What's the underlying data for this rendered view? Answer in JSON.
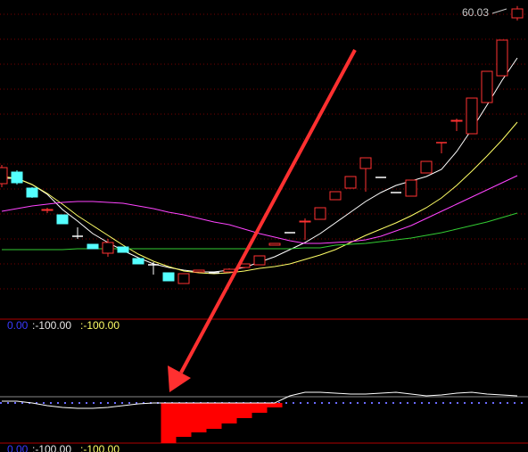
{
  "chart_data": [
    {
      "type": "candlestick",
      "annotation": "60.03",
      "ylim": [
        25,
        60.7
      ],
      "up_color": "#ff3232",
      "down_color": "#54ffff",
      "flat_color": "#ffffff",
      "open": [
        40.1,
        41.4,
        39.6,
        37.1,
        36.6,
        34.2,
        33.3,
        32.3,
        33.0,
        31.7,
        31.0,
        30.1,
        28.9,
        30.2,
        30.1,
        30.2,
        30.7,
        31.0,
        33.2,
        34.6,
        35.8,
        36.1,
        38.3,
        39.6,
        41.8,
        40.8,
        39.1,
        38.7,
        41.3,
        44.6,
        47.1,
        45.7,
        49.2,
        52.2,
        58.7
      ],
      "high": [
        42.2,
        41.6,
        39.7,
        37.4,
        36.6,
        35.2,
        33.3,
        33.9,
        33.0,
        31.7,
        31.3,
        30.1,
        30.0,
        30.4,
        30.2,
        30.6,
        31.1,
        32.0,
        33.4,
        34.6,
        36.2,
        37.4,
        39.2,
        40.9,
        43.0,
        40.8,
        39.1,
        40.5,
        42.6,
        44.7,
        47.4,
        49.7,
        52.7,
        56.2,
        60.03
      ],
      "low": [
        39.7,
        40.0,
        38.5,
        36.8,
        35.6,
        33.9,
        32.8,
        31.9,
        32.4,
        31.1,
        29.9,
        29.2,
        28.9,
        30.2,
        30.0,
        30.2,
        30.6,
        31.0,
        33.2,
        34.6,
        33.8,
        36.1,
        38.3,
        39.6,
        39.2,
        40.8,
        39.1,
        38.7,
        41.3,
        43.5,
        46.0,
        45.7,
        49.2,
        52.2,
        58.4
      ],
      "close": [
        41.9,
        40.2,
        38.6,
        37.2,
        35.6,
        34.2,
        32.8,
        33.5,
        32.4,
        31.1,
        31.0,
        29.2,
        30.0,
        30.4,
        30.1,
        30.5,
        31.1,
        32.0,
        33.4,
        34.6,
        35.9,
        37.4,
        39.2,
        40.9,
        43.0,
        40.8,
        39.1,
        40.5,
        42.6,
        44.7,
        47.2,
        49.7,
        52.7,
        56.2,
        59.7
      ],
      "lines": [
        {
          "color": "#ffffff",
          "values": [
            40.7,
            40.7,
            40.0,
            38.9,
            37.2,
            35.9,
            34.5,
            33.5,
            32.6,
            31.8,
            31.1,
            30.7,
            30.4,
            30.2,
            30.2,
            30.4,
            30.7,
            31.3,
            31.9,
            32.7,
            33.5,
            34.5,
            35.7,
            36.9,
            38.1,
            39.1,
            39.9,
            40.4,
            40.9,
            41.7,
            43.7,
            46.2,
            48.9,
            51.7,
            54.2
          ]
        },
        {
          "color": "#ffff66",
          "values": [
            40.9,
            40.7,
            40.0,
            39.0,
            37.8,
            36.5,
            35.4,
            34.3,
            33.2,
            32.2,
            31.4,
            30.8,
            30.3,
            30.1,
            30.0,
            30.1,
            30.3,
            30.6,
            30.8,
            31.1,
            31.6,
            32.1,
            32.7,
            33.5,
            34.3,
            35.0,
            35.7,
            36.5,
            37.4,
            38.5,
            39.9,
            41.5,
            43.2,
            45.0,
            47.0
          ]
        },
        {
          "color": "#ff44ff",
          "values": [
            37.0,
            37.3,
            37.6,
            37.8,
            38.0,
            38.1,
            38.1,
            38.0,
            37.9,
            37.6,
            37.3,
            36.9,
            36.6,
            36.2,
            35.8,
            35.5,
            35.0,
            34.5,
            34.1,
            33.7,
            33.4,
            33.4,
            33.5,
            33.6,
            33.8,
            34.2,
            34.8,
            35.4,
            36.2,
            37.0,
            37.8,
            38.6,
            39.4,
            40.2,
            41.0
          ]
        },
        {
          "color": "#33cc33",
          "values": [
            32.7,
            32.7,
            32.7,
            32.7,
            32.7,
            32.8,
            32.8,
            32.8,
            32.8,
            32.8,
            32.8,
            32.8,
            32.8,
            32.8,
            32.8,
            32.8,
            32.8,
            32.8,
            32.8,
            32.8,
            32.9,
            32.9,
            33.2,
            33.3,
            33.4,
            33.6,
            33.8,
            34.0,
            34.3,
            34.6,
            35.0,
            35.4,
            35.8,
            36.3,
            36.8
          ]
        }
      ]
    },
    {
      "type": "bar",
      "header": [
        "0.00",
        ":-100.00",
        ":-100.00"
      ],
      "footer": [
        "0.00",
        ":-100.00",
        ":-100.00"
      ],
      "ylim": [
        -45,
        94
      ],
      "color": "#ff0000",
      "values": [
        null,
        null,
        null,
        null,
        null,
        null,
        null,
        null,
        null,
        null,
        null,
        -45,
        -38,
        -33,
        -29,
        -23,
        -17,
        -11,
        -5,
        null,
        null,
        null,
        null,
        null,
        null,
        null,
        null,
        null,
        null,
        null,
        null,
        null,
        null,
        null,
        null
      ],
      "line": {
        "color": "#ffffff",
        "values": [
          2,
          2,
          0,
          -3,
          -5,
          -6,
          -6,
          -5,
          -3,
          -1,
          0,
          0,
          0,
          0,
          0,
          0,
          0,
          0,
          0,
          8,
          12,
          12,
          11,
          10,
          10,
          11,
          12,
          10,
          8,
          9,
          11,
          12,
          10,
          9,
          8
        ]
      }
    }
  ]
}
